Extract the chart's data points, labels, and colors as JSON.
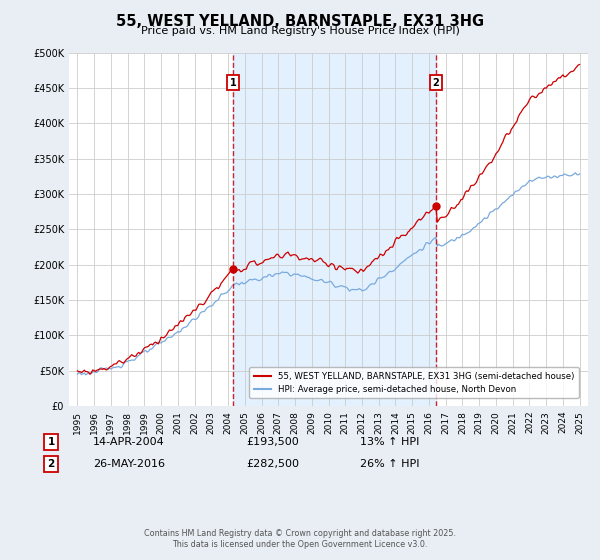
{
  "title": "55, WEST YELLAND, BARNSTAPLE, EX31 3HG",
  "subtitle": "Price paid vs. HM Land Registry's House Price Index (HPI)",
  "ylabel_ticks": [
    0,
    50000,
    100000,
    150000,
    200000,
    250000,
    300000,
    350000,
    400000,
    450000,
    500000
  ],
  "ylim": [
    0,
    500000
  ],
  "xlim_start": 1994.5,
  "xlim_end": 2025.5,
  "sale1_year": 2004.29,
  "sale1_price": 193500,
  "sale1_label": "1",
  "sale1_date": "14-APR-2004",
  "sale1_hpi_pct": "13%",
  "sale2_year": 2016.41,
  "sale2_price": 282500,
  "sale2_label": "2",
  "sale2_date": "26-MAY-2016",
  "sale2_hpi_pct": "26%",
  "line_color_property": "#cc0000",
  "line_color_hpi": "#7aaadd",
  "vline_color": "#cc0000",
  "shade_color": "#ddeeff",
  "background_color": "#e8eef4",
  "plot_bg_color": "#ffffff",
  "legend_label_property": "55, WEST YELLAND, BARNSTAPLE, EX31 3HG (semi-detached house)",
  "legend_label_hpi": "HPI: Average price, semi-detached house, North Devon",
  "footer": "Contains HM Land Registry data © Crown copyright and database right 2025.\nThis data is licensed under the Open Government Licence v3.0.",
  "years_start": 1995,
  "years_end": 2025
}
